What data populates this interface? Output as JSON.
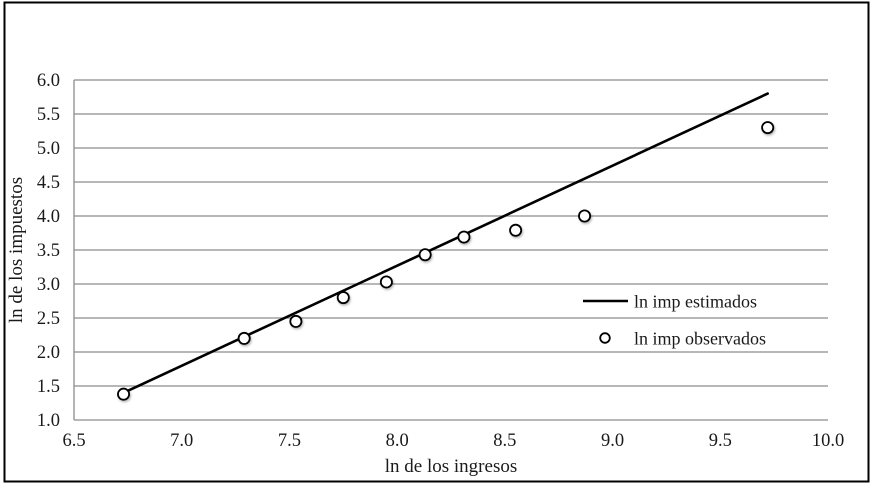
{
  "figure": {
    "background": "#ffffff",
    "border_color": "#000000"
  },
  "chart_data": {
    "type": "scatter",
    "title": "",
    "xlabel": "ln de los ingresos",
    "ylabel": "ln de los impuestos",
    "xlim": [
      6.5,
      10.0
    ],
    "ylim": [
      1.0,
      6.0
    ],
    "xticks": [
      6.5,
      7.0,
      7.5,
      8.0,
      8.5,
      9.0,
      9.5,
      10.0
    ],
    "yticks": [
      1.0,
      1.5,
      2.0,
      2.5,
      3.0,
      3.5,
      4.0,
      4.5,
      5.0,
      5.5,
      6.0
    ],
    "tick_decimals": 1,
    "grid": "horizontal",
    "legend_position": "inside-right",
    "series": [
      {
        "name": "ln imp estimados",
        "kind": "line",
        "color": "#000000",
        "stroke_width": 2.6,
        "points": [
          [
            6.73,
            1.4
          ],
          [
            9.72,
            5.8
          ]
        ]
      },
      {
        "name": "ln imp observados",
        "kind": "scatter",
        "marker": "open-circle",
        "stroke_color": "#000000",
        "fill_color": "#ffffff",
        "points": [
          [
            6.73,
            1.38
          ],
          [
            7.29,
            2.2
          ],
          [
            7.53,
            2.45
          ],
          [
            7.75,
            2.8
          ],
          [
            7.95,
            3.03
          ],
          [
            8.13,
            3.43
          ],
          [
            8.31,
            3.69
          ],
          [
            8.55,
            3.79
          ],
          [
            8.87,
            4.0
          ],
          [
            9.72,
            5.3
          ]
        ]
      }
    ],
    "colors": {
      "grid": "#8c8c8c",
      "axis": "#8c8c8c",
      "text": "#1a1a1a",
      "line": "#000000"
    }
  }
}
